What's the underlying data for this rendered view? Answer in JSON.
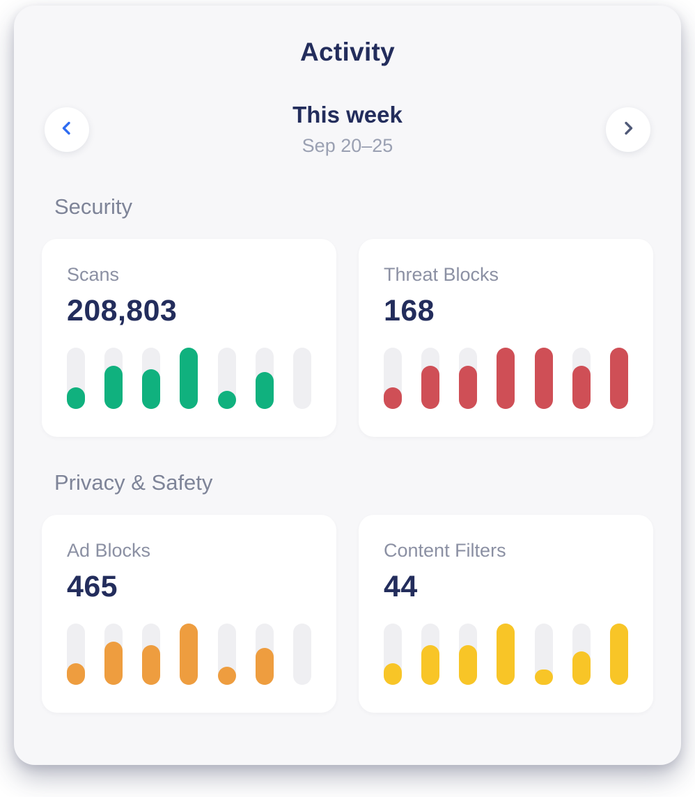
{
  "header": {
    "title": "Activity"
  },
  "week_nav": {
    "label": "This week",
    "range": "Sep 20–25",
    "prev_icon_color": "#2f6cf1",
    "next_icon_color": "#505a78"
  },
  "colors": {
    "panel_background": "#f7f7f9",
    "card_background": "#ffffff",
    "bar_track": "#efeff2",
    "text_primary": "#232d5c",
    "text_secondary": "#8b90a3"
  },
  "sections": [
    {
      "title": "Security",
      "cards": [
        {
          "label": "Scans",
          "value": "208,803",
          "color": "#10b17e",
          "bars": [
            0.35,
            0.7,
            0.65,
            1,
            0.3,
            0.6,
            0
          ]
        },
        {
          "label": "Threat Blocks",
          "value": "168",
          "color": "#cf4f56",
          "bars": [
            0.35,
            0.7,
            0.7,
            1,
            1,
            0.7,
            1
          ]
        }
      ]
    },
    {
      "title": "Privacy & Safety",
      "cards": [
        {
          "label": "Ad Blocks",
          "value": "465",
          "color": "#ee9d3f",
          "bars": [
            0.35,
            0.7,
            0.65,
            1,
            0.3,
            0.6,
            0
          ]
        },
        {
          "label": "Content Filters",
          "value": "44",
          "color": "#f8c527",
          "bars": [
            0.35,
            0.65,
            0.65,
            1,
            0.25,
            0.55,
            1
          ]
        }
      ]
    }
  ]
}
